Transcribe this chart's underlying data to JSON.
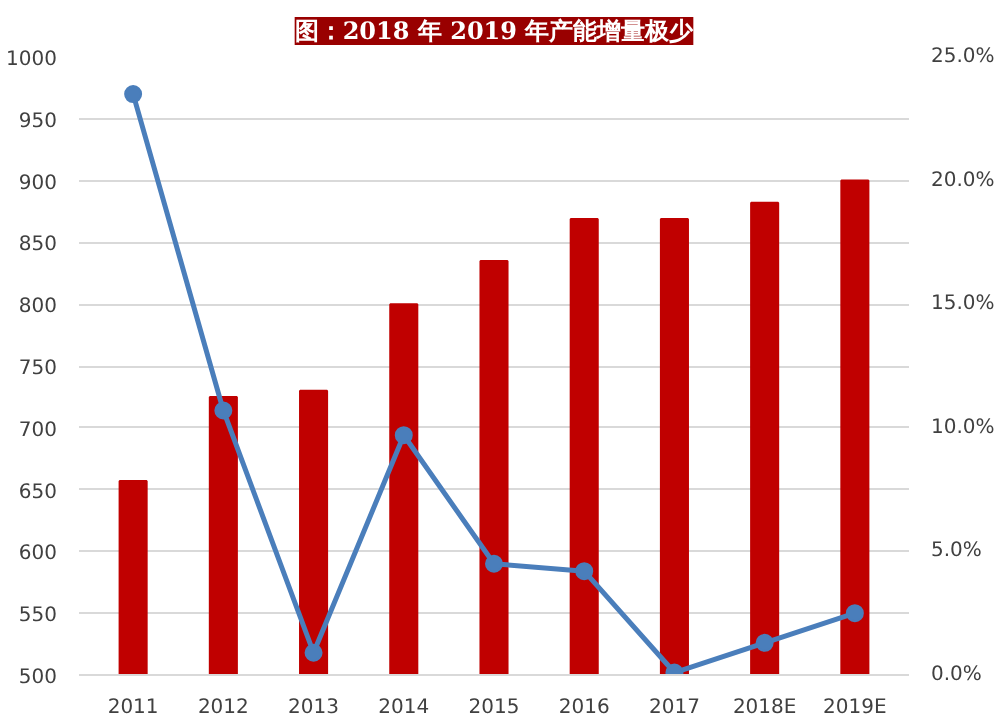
{
  "chart_data": {
    "type": "bar",
    "title": "图：2018 年 2019 年产能增量极少",
    "categories": [
      "2011",
      "2012",
      "2013",
      "2014",
      "2015",
      "2016",
      "2017",
      "2018E",
      "2019E"
    ],
    "series": [
      {
        "color": "#c00000",
        "values": [
          657,
          725,
          730,
          800,
          835,
          869,
          869,
          882,
          900
        ]
      },
      {
        "type": "line",
        "axis": "y2",
        "color": "#4a7ebb",
        "values": [
          23.5,
          10.7,
          0.9,
          9.7,
          4.5,
          4.2,
          0.1,
          1.3,
          2.5
        ]
      }
    ],
    "ylim": [
      500,
      1000
    ],
    "yticks": [
      500,
      550,
      600,
      650,
      700,
      750,
      800,
      850,
      900,
      950,
      1000
    ],
    "y2lim": [
      0,
      25
    ],
    "y2ticks": [
      {
        "value": 0,
        "label": "0.0%"
      },
      {
        "value": 5,
        "label": "5.0%"
      },
      {
        "value": 10,
        "label": "10.0%"
      },
      {
        "value": 15,
        "label": "15.0%"
      },
      {
        "value": 20,
        "label": "20.0%"
      },
      {
        "value": 25,
        "label": "25.0%"
      }
    ],
    "grid": "y",
    "marker": "circle",
    "line_style": "solid"
  }
}
